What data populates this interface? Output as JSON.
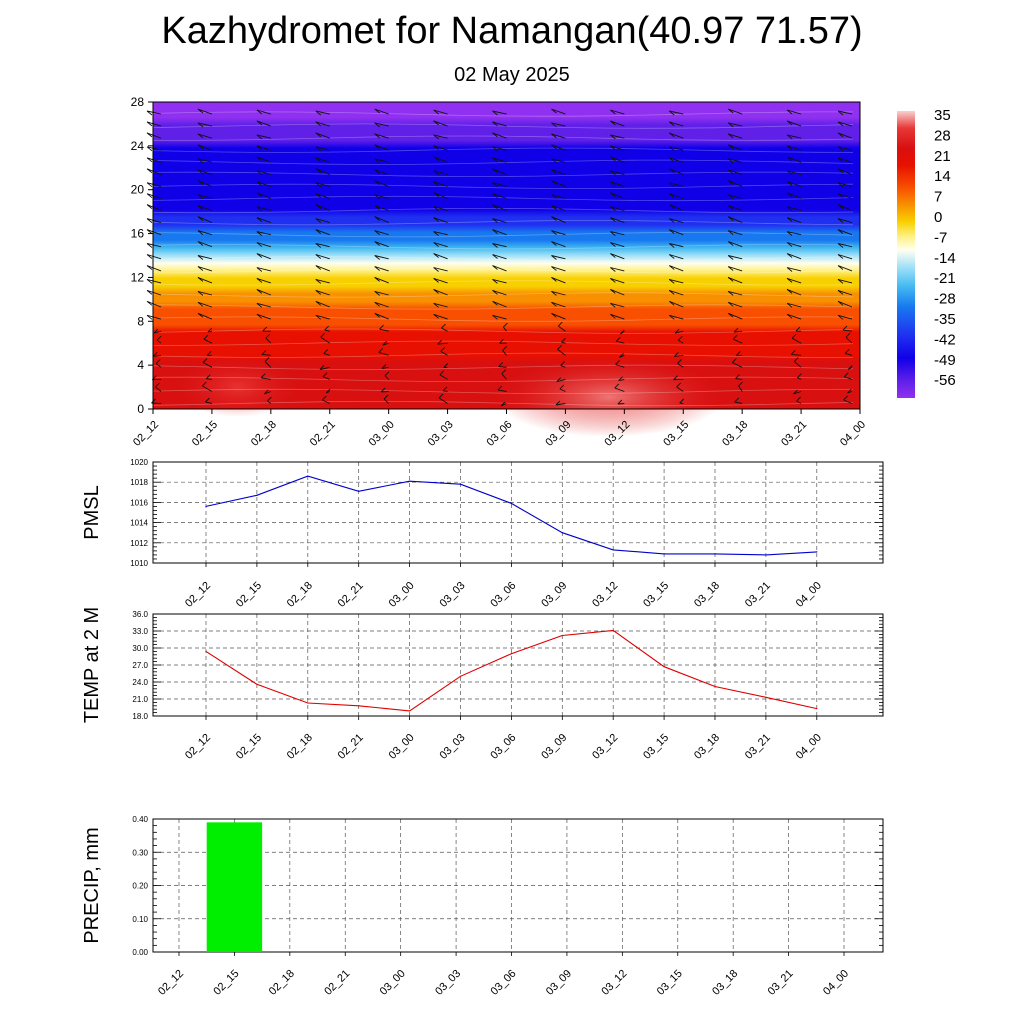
{
  "title": "Kazhydromet for Namangan(40.97 71.57)",
  "subtitle": "02 May 2025",
  "chart_data": [
    {
      "type": "heatmap",
      "name": "upper-air-temperature-wind",
      "x_categories": [
        "02_12",
        "02_15",
        "02_18",
        "02_21",
        "03_00",
        "03_03",
        "03_06",
        "03_09",
        "03_12",
        "03_15",
        "03_18",
        "03_21",
        "04_00"
      ],
      "yticks": [
        0,
        4,
        8,
        12,
        16,
        20,
        24,
        28
      ],
      "ylim": [
        0,
        28
      ],
      "colorbar_labels": [
        "35",
        "28",
        "21",
        "14",
        "7",
        "0",
        "-7",
        "-14",
        "-21",
        "-28",
        "-35",
        "-42",
        "-49",
        "-56"
      ],
      "color_stops": [
        {
          "v": 39,
          "c": "#f8d0d0"
        },
        {
          "v": 33,
          "c": "#e83838"
        },
        {
          "v": 26,
          "c": "#d81010"
        },
        {
          "v": 20,
          "c": "#e81000"
        },
        {
          "v": 12,
          "c": "#f85000"
        },
        {
          "v": 6,
          "c": "#f89000"
        },
        {
          "v": 0,
          "c": "#f8d000"
        },
        {
          "v": -5,
          "c": "#fff080"
        },
        {
          "v": -10,
          "c": "#fffff0"
        },
        {
          "v": -16,
          "c": "#a0e0f8"
        },
        {
          "v": -23,
          "c": "#40b8f0"
        },
        {
          "v": -30,
          "c": "#1878f0"
        },
        {
          "v": -40,
          "c": "#2030f0"
        },
        {
          "v": -48,
          "c": "#1000e8"
        },
        {
          "v": -56,
          "c": "#6020e8"
        },
        {
          "v": -62,
          "c": "#9030f0"
        }
      ],
      "profile_alt": [
        0,
        2,
        4,
        6,
        8,
        10,
        11,
        12,
        12.8,
        13.5,
        14.5,
        15.5,
        16.5,
        17.5,
        18.5,
        19.5,
        21,
        23,
        25,
        26.5,
        28
      ],
      "profile_temp": [
        29,
        27,
        24,
        19,
        13,
        6,
        2,
        -2,
        -6,
        -12,
        -20,
        -28,
        -36,
        -44,
        -50,
        -52,
        -49,
        -48,
        -54,
        -60,
        -62
      ]
    },
    {
      "type": "line",
      "name": "pmsl",
      "ylabel": "PMSL",
      "categories": [
        "02_12",
        "02_15",
        "02_18",
        "02_21",
        "03_00",
        "03_03",
        "03_06",
        "03_09",
        "03_12",
        "03_15",
        "03_18",
        "03_21",
        "04_00"
      ],
      "values": [
        1015.6,
        1016.7,
        1018.6,
        1017.1,
        1018.1,
        1017.8,
        1015.9,
        1013.0,
        1011.3,
        1010.9,
        1010.9,
        1010.8,
        1011.1
      ],
      "ylim": [
        1010,
        1020
      ],
      "yticks": [
        "1010",
        "1012",
        "1014",
        "1016",
        "1018",
        "1020"
      ],
      "color": "#0000cc"
    },
    {
      "type": "line",
      "name": "temp-2m",
      "ylabel": "TEMP at 2 M",
      "categories": [
        "02_12",
        "02_15",
        "02_18",
        "02_21",
        "03_00",
        "03_03",
        "03_06",
        "03_09",
        "03_12",
        "03_15",
        "03_18",
        "03_21",
        "04_00"
      ],
      "values": [
        29.4,
        23.6,
        20.3,
        19.8,
        18.9,
        25.0,
        29.0,
        32.2,
        33.1,
        26.7,
        23.2,
        21.3,
        19.3
      ],
      "ylim": [
        18,
        36
      ],
      "yticks": [
        "18.0",
        "21.0",
        "24.0",
        "27.0",
        "30.0",
        "33.0",
        "36.0"
      ],
      "color": "#dd0000"
    },
    {
      "type": "bar",
      "name": "precip",
      "ylabel": "PRECIP, mm",
      "categories": [
        "02_12",
        "02_15",
        "02_18",
        "02_21",
        "03_00",
        "03_03",
        "03_06",
        "03_09",
        "03_12",
        "03_15",
        "03_18",
        "03_21",
        "04_00"
      ],
      "values": [
        0,
        0.39,
        0,
        0,
        0,
        0,
        0,
        0,
        0,
        0,
        0,
        0,
        0
      ],
      "ylim": [
        0,
        0.4
      ],
      "yticks": [
        "0.00",
        "0.10",
        "0.20",
        "0.30",
        "0.40"
      ],
      "color": "#00ee00"
    }
  ]
}
